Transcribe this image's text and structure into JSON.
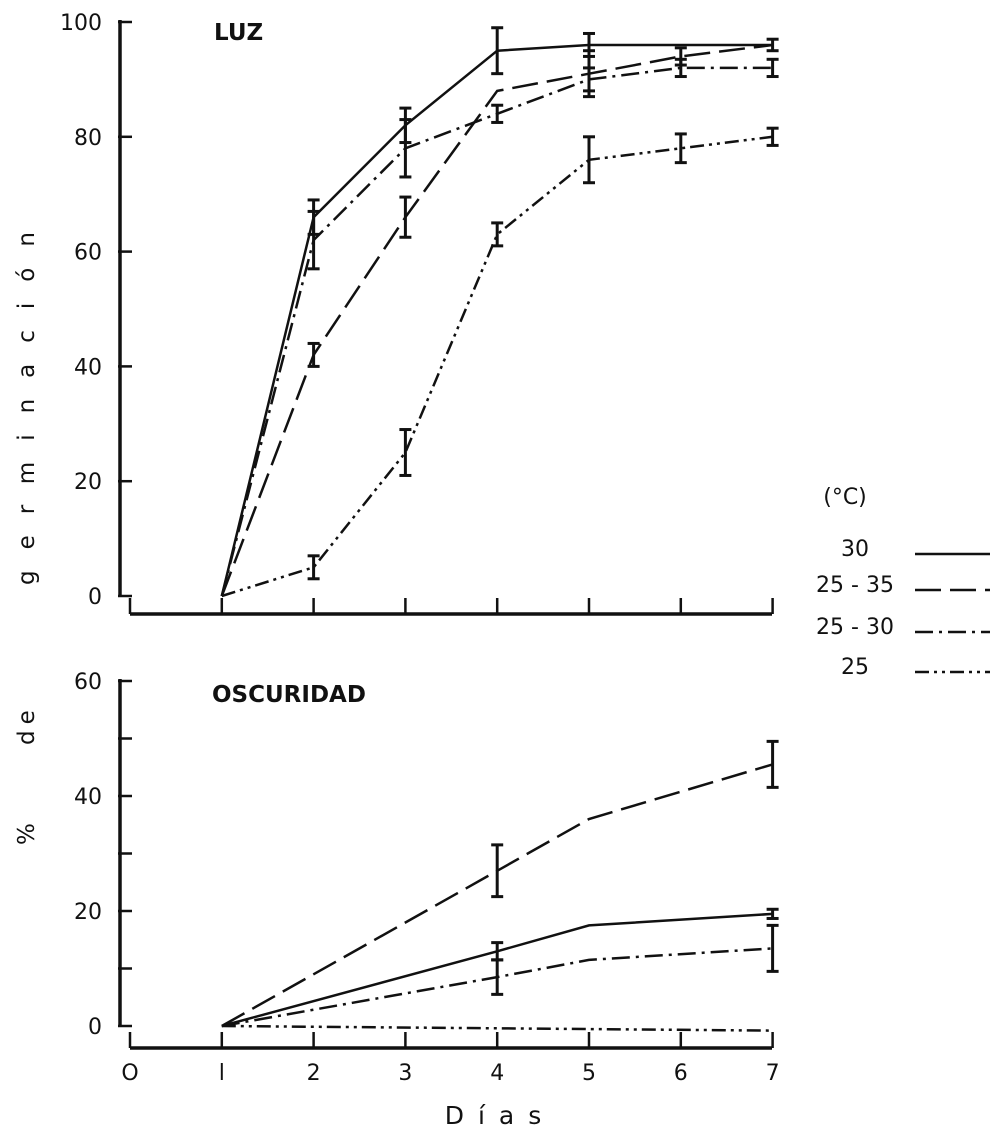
{
  "figure": {
    "ylabel": "% de germinación",
    "xlabel": "Días",
    "legend_title": "(°C)",
    "legend_items": [
      {
        "label": "30",
        "dash": "solid"
      },
      {
        "label": "25 - 35",
        "dash": "long-dash"
      },
      {
        "label": "25 - 30",
        "dash": "dash-dot"
      },
      {
        "label": "25",
        "dash": "dash-dot-dot"
      }
    ]
  },
  "chart_data": [
    {
      "type": "line",
      "title": "LUZ",
      "xlim": [
        0,
        7
      ],
      "ylim": [
        0,
        100
      ],
      "x_ticks": [
        1,
        2,
        3,
        4,
        5,
        6,
        7
      ],
      "y_ticks": [
        0,
        20,
        40,
        60,
        80,
        100
      ],
      "y_tick_labels": [
        "0",
        "20",
        "40",
        "60",
        "80",
        "100"
      ],
      "series": [
        {
          "name": "30",
          "dash": "solid",
          "points": [
            [
              1,
              0
            ],
            [
              2,
              66
            ],
            [
              3,
              82
            ],
            [
              4,
              95
            ],
            [
              5,
              96
            ],
            [
              6,
              96
            ],
            [
              7,
              96
            ]
          ],
          "errors": [
            [
              2,
              3
            ],
            [
              3,
              3
            ],
            [
              4,
              4
            ],
            [
              5,
              2
            ],
            [
              7,
              1
            ]
          ]
        },
        {
          "name": "25 - 35",
          "dash": "long-dash",
          "points": [
            [
              1,
              0
            ],
            [
              2,
              42
            ],
            [
              3,
              66
            ],
            [
              4,
              88
            ],
            [
              5,
              91
            ],
            [
              6,
              94
            ],
            [
              7,
              96
            ]
          ],
          "errors": [
            [
              2,
              2
            ],
            [
              3,
              3.5
            ],
            [
              5,
              4
            ],
            [
              6,
              1.5
            ]
          ]
        },
        {
          "name": "25 - 30",
          "dash": "dash-dot",
          "points": [
            [
              1,
              0
            ],
            [
              2,
              62
            ],
            [
              3,
              78
            ],
            [
              4,
              84
            ],
            [
              5,
              90
            ],
            [
              6,
              92
            ],
            [
              7,
              92
            ]
          ],
          "errors": [
            [
              2,
              5
            ],
            [
              3,
              5
            ],
            [
              4,
              1.5
            ],
            [
              5,
              2
            ],
            [
              6,
              1.5
            ],
            [
              7,
              1.5
            ]
          ]
        },
        {
          "name": "25",
          "dash": "dash-dot-dot",
          "points": [
            [
              1,
              0
            ],
            [
              2,
              5
            ],
            [
              3,
              25
            ],
            [
              4,
              63
            ],
            [
              5,
              76
            ],
            [
              6,
              78
            ],
            [
              7,
              80
            ]
          ],
          "errors": [
            [
              2,
              2
            ],
            [
              3,
              4
            ],
            [
              4,
              2
            ],
            [
              5,
              4
            ],
            [
              6,
              2.5
            ],
            [
              7,
              1.5
            ]
          ]
        }
      ]
    },
    {
      "type": "line",
      "title": "OSCURIDAD",
      "xlim": [
        0,
        7
      ],
      "ylim": [
        0,
        60
      ],
      "x_ticks": [
        0,
        1,
        2,
        3,
        4,
        5,
        6,
        7
      ],
      "x_tick_labels": [
        "O",
        "l",
        "2",
        "3",
        "4",
        "5",
        "6",
        "7"
      ],
      "y_ticks": [
        0,
        10,
        20,
        30,
        40,
        50,
        60
      ],
      "y_tick_labels": [
        "0",
        "",
        "20",
        "",
        "40",
        "",
        "60"
      ],
      "series": [
        {
          "name": "30",
          "dash": "solid",
          "points": [
            [
              1,
              0
            ],
            [
              4,
              13
            ],
            [
              5,
              17.5
            ],
            [
              7,
              19.5
            ]
          ],
          "errors": [
            [
              4,
              1.5
            ],
            [
              7,
              0.8
            ]
          ]
        },
        {
          "name": "25 - 35",
          "dash": "long-dash",
          "points": [
            [
              1,
              0
            ],
            [
              4,
              27
            ],
            [
              5,
              36
            ],
            [
              7,
              45.5
            ]
          ],
          "errors": [
            [
              4,
              4.5
            ],
            [
              7,
              4
            ]
          ]
        },
        {
          "name": "25 - 30",
          "dash": "dash-dot",
          "points": [
            [
              1,
              0
            ],
            [
              4,
              8.5
            ],
            [
              5,
              11.5
            ],
            [
              7,
              13.5
            ]
          ],
          "errors": [
            [
              4,
              3
            ],
            [
              7,
              4
            ]
          ]
        },
        {
          "name": "25",
          "dash": "dash-dot-dot",
          "points": [
            [
              1,
              0
            ],
            [
              7,
              -0.8
            ]
          ],
          "errors": []
        }
      ]
    }
  ]
}
